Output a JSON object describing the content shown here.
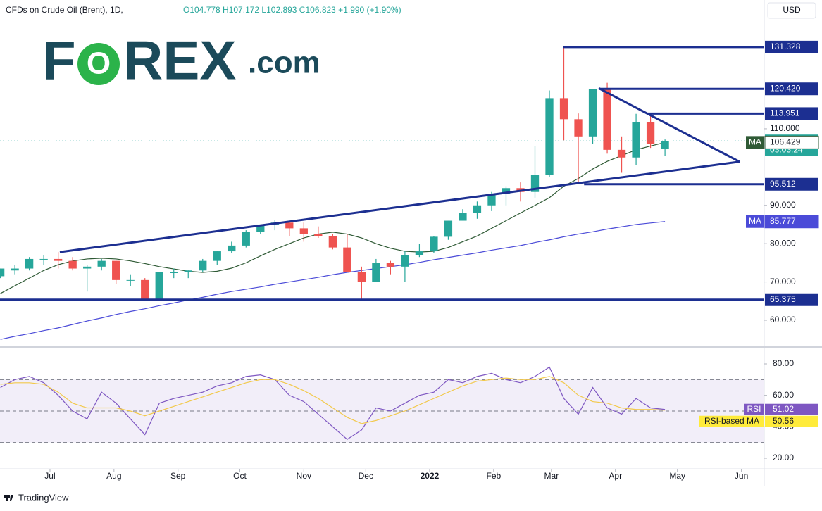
{
  "header": {
    "symbol": "CFDs on Crude Oil (Brent), 1D,",
    "ohlc": "O104.778 H107.172 L102.893 C106.823 +1.990 (+1.90%)",
    "currency": "USD"
  },
  "logo": {
    "parts": [
      "F",
      "O",
      "REX",
      ".com"
    ]
  },
  "footer": {
    "brand": "TradingView"
  },
  "chart_data": [
    {
      "type": "candlestick",
      "open": [
        71.5,
        73,
        73.5,
        76,
        76,
        75.5,
        73.5,
        74,
        75.5,
        70.5,
        70.5,
        65.5,
        72.5,
        72.5,
        73,
        75.5,
        78,
        79.5,
        83,
        85,
        85.5,
        84,
        82.5,
        82,
        79,
        72.5,
        70,
        75,
        74,
        77,
        78,
        81.8,
        86,
        88,
        90,
        93,
        94.5,
        93.5,
        97.9,
        118,
        112.5,
        108,
        120.4,
        104.5,
        102.5,
        111.7,
        104.8
      ],
      "high": [
        73.5,
        74.5,
        76.5,
        77,
        77.8,
        76.5,
        74.5,
        76,
        75.5,
        72,
        71,
        72.5,
        73.5,
        73,
        76,
        78,
        80.5,
        83.5,
        85,
        86.2,
        86,
        85.5,
        84.5,
        82.5,
        82.5,
        74,
        76,
        75.5,
        78,
        80,
        82,
        86,
        89,
        91,
        93.5,
        95,
        96,
        105.5,
        120,
        131.3,
        114,
        120.4,
        122,
        108,
        113.9,
        114,
        107.2
      ],
      "low": [
        71,
        72,
        73,
        74.5,
        73.5,
        73,
        67.5,
        73,
        69.5,
        69,
        65,
        65.2,
        71,
        71,
        72.5,
        74.5,
        77.5,
        79,
        82.5,
        83.5,
        82,
        80.5,
        81.5,
        78.5,
        72.5,
        65.5,
        70,
        72,
        70,
        76.5,
        77.5,
        81,
        86,
        86.5,
        88.5,
        90,
        91,
        92,
        97.5,
        107,
        95.5,
        106,
        103.5,
        98.5,
        100.5,
        105,
        102.9
      ],
      "close": [
        73.5,
        73.5,
        76,
        76,
        75.5,
        73.5,
        74,
        75.5,
        70.5,
        70.5,
        65.5,
        72.5,
        72.5,
        73,
        75.5,
        78,
        79.5,
        83,
        85,
        85.5,
        84,
        82.5,
        82,
        79,
        72.5,
        70,
        75,
        74,
        77,
        78,
        81.8,
        86,
        88,
        90,
        93,
        94.5,
        93.5,
        97.9,
        118,
        112.5,
        108,
        120.4,
        104.5,
        102.5,
        111.7,
        106,
        106.823
      ],
      "up_color": "#26a69a",
      "down_color": "#ef5350",
      "series": [
        {
          "name": "MA",
          "color": "#2f5a35",
          "values": [
            67,
            69,
            71,
            73,
            74.5,
            75.5,
            76,
            76.2,
            76,
            75.5,
            74.8,
            74,
            73.4,
            72.8,
            72.5,
            72.8,
            73.6,
            75,
            76.8,
            78.5,
            80,
            81.5,
            82.5,
            83,
            82.5,
            81.5,
            80,
            78.8,
            78,
            77.8,
            78,
            79,
            80.5,
            82,
            84,
            86,
            88,
            90,
            92,
            95,
            97,
            99.5,
            101.5,
            103,
            104.5,
            105.5,
            106.429
          ]
        },
        {
          "name": "MA",
          "color": "#4b4bd8",
          "values": [
            55,
            55.8,
            56.5,
            57.3,
            58,
            58.9,
            59.8,
            60.6,
            61.5,
            62.3,
            63,
            63.8,
            64.5,
            65.3,
            66,
            66.8,
            67.5,
            68.1,
            68.7,
            69.4,
            70,
            70.6,
            71.2,
            71.9,
            72.5,
            73,
            73.5,
            74,
            74.5,
            75.1,
            75.8,
            76.4,
            77,
            77.6,
            78.3,
            78.9,
            79.5,
            80.3,
            81,
            81.8,
            82.5,
            83.1,
            83.8,
            84.4,
            85,
            85.4,
            85.777
          ]
        }
      ],
      "xlim": [
        -0.03,
        52.87
      ],
      "ylim": [
        53.2,
        142.7
      ],
      "yticks": [
        {
          "value": 60,
          "label": "60.000"
        },
        {
          "value": 70,
          "label": "70.000"
        },
        {
          "value": 80,
          "label": "80.000"
        },
        {
          "value": 90,
          "label": "90.000"
        },
        {
          "value": 110,
          "label": "110.000"
        }
      ],
      "levels": [
        {
          "value": 131.328,
          "x_start": 38.97
        },
        {
          "value": 120.42,
          "label": "120.420",
          "x_start": 41.41
        },
        {
          "value": 113.951,
          "x_start": 44.8
        },
        {
          "value": 95.512,
          "x_start": 40.4
        },
        {
          "value": 65.375,
          "x_start": -0.03
        }
      ],
      "level_color": "#1c2f91",
      "trendlines": [
        {
          "x": [
            4.11,
            51.16
          ],
          "y": [
            77.8,
            101.4
          ]
        },
        {
          "x": [
            41.41,
            51.16
          ],
          "y": [
            120.6,
            101.4
          ]
        }
      ],
      "countdown": "03:03:24"
    },
    {
      "type": "line",
      "series": [
        {
          "name": "RSI",
          "color": "#7e57c2",
          "values": [
            65,
            70,
            72,
            68,
            60,
            50,
            45,
            62,
            55,
            45,
            35,
            55,
            58,
            60,
            62,
            66,
            68,
            72,
            73,
            70,
            60,
            56,
            48,
            40,
            32,
            38,
            52,
            50,
            55,
            60,
            62,
            70,
            68,
            72,
            74,
            70,
            68,
            72,
            78,
            58,
            48,
            65,
            52,
            48,
            58,
            52,
            51.02
          ]
        },
        {
          "name": "RSI-based MA",
          "color": "#f2c94c",
          "values": [
            67,
            68,
            68,
            67,
            62,
            55,
            52,
            52,
            52,
            50,
            47,
            50,
            53,
            56,
            59,
            62,
            65,
            68,
            70,
            70,
            67,
            63,
            58,
            52,
            46,
            42,
            44,
            47,
            50,
            54,
            58,
            62,
            66,
            69,
            70,
            71,
            70,
            70,
            72,
            68,
            60,
            56,
            55,
            52,
            51,
            51,
            50.56
          ]
        }
      ],
      "xlim": [
        -0.03,
        52.87
      ],
      "ylim": [
        13.73,
        89.85
      ],
      "yticks": [
        {
          "value": 20,
          "label": "20.00"
        },
        {
          "value": 40,
          "label": "40.00"
        },
        {
          "value": 60,
          "label": "60.00"
        },
        {
          "value": 80,
          "label": "80.00"
        }
      ],
      "bands": [
        70,
        50,
        30
      ],
      "xticks": [
        {
          "value": 3.43,
          "label": "Jul"
        },
        {
          "value": 7.86,
          "label": "Aug"
        },
        {
          "value": 12.29,
          "label": "Sep"
        },
        {
          "value": 16.57,
          "label": "Oct"
        },
        {
          "value": 21,
          "label": "Nov"
        },
        {
          "value": 25.29,
          "label": "Dec"
        },
        {
          "value": 29.71,
          "label": "2022"
        },
        {
          "value": 34.14,
          "label": "Feb"
        },
        {
          "value": 38.14,
          "label": "Mar"
        },
        {
          "value": 42.57,
          "label": "Apr"
        },
        {
          "value": 46.86,
          "label": "May"
        },
        {
          "value": 51.29,
          "label": "Jun"
        }
      ]
    }
  ]
}
